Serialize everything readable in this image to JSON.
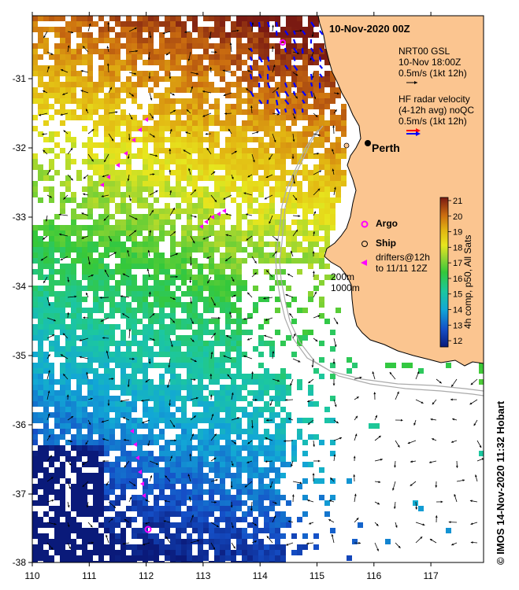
{
  "title": "10-Nov-2020 00Z",
  "city": "Perth",
  "legend": {
    "gsl_line1": "NRT00 GSL",
    "gsl_line2": "10-Nov 18:00Z",
    "gsl_line3": "0.5m/s (1kt 12h)",
    "hf_line1": "HF radar velocity",
    "hf_line2": "(4-12h avg) noQC",
    "hf_line3": "0.5m/s (1kt 12h)",
    "argo": "Argo",
    "ship": "Ship",
    "drifters_line1": "drifters@12h",
    "drifters_line2": "to 11/11 12Z",
    "depth_200": "200m",
    "depth_1000": "1000m"
  },
  "colorbar": {
    "label": "4h comp, p50, All Sats",
    "ticks": [
      "21",
      "20",
      "19",
      "18",
      "17",
      "16",
      "15",
      "14",
      "13",
      "12"
    ],
    "vmin": 11.6,
    "vmax": 21.2
  },
  "axes": {
    "x_ticks": [
      "110",
      "111",
      "112",
      "113",
      "114",
      "115",
      "116",
      "117"
    ],
    "y_ticks": [
      "-31",
      "-32",
      "-33",
      "-34",
      "-35",
      "-36",
      "-37",
      "-38"
    ],
    "lon_range": [
      110,
      117.85
    ],
    "lat_range": [
      -38,
      -30.1
    ]
  },
  "credit": "© IMOS 14-Nov-2020 11:32 Hobart",
  "colors": {
    "land": "#FBC590",
    "gsl_arrow": "#000000",
    "hf_red": "#ff0000",
    "hf_blue": "#0000ff",
    "argo": "#ff00ff",
    "drifter": "#ff00ff"
  }
}
